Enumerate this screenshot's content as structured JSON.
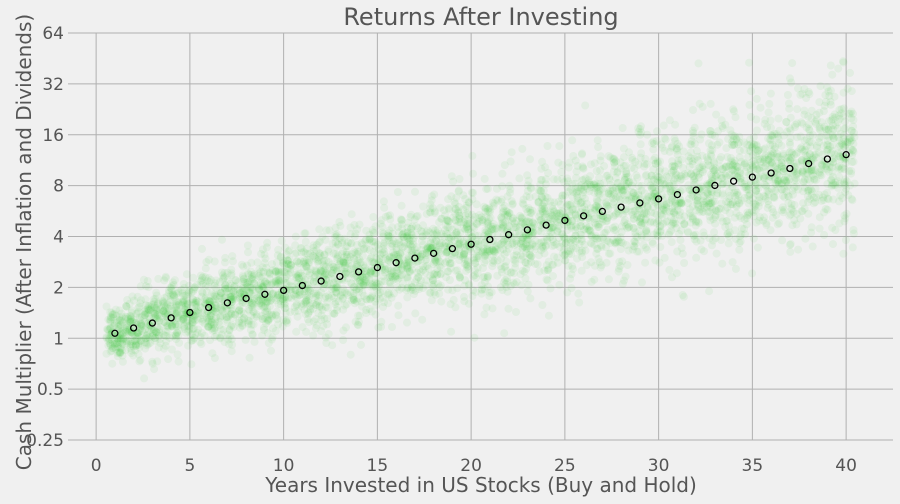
{
  "chart_data": {
    "type": "scatter",
    "title": "Returns After Investing",
    "xlabel": "Years Invested in US Stocks (Buy and Hold)",
    "ylabel": "Cash Multiplier (After Inflation and Dividends)",
    "xlim": [
      -1.5,
      42.5
    ],
    "ylim": [
      0.25,
      64
    ],
    "y_scale": "log2",
    "grid": true,
    "x_ticks": [
      0,
      5,
      10,
      15,
      20,
      25,
      30,
      35,
      40
    ],
    "x_tick_labels": [
      "0",
      "5",
      "10",
      "15",
      "20",
      "25",
      "30",
      "35",
      "40"
    ],
    "y_ticks": [
      0.25,
      0.5,
      1,
      2,
      4,
      8,
      16,
      32,
      64
    ],
    "y_tick_labels": [
      "0.25",
      "0.5",
      "1",
      "2",
      "4",
      "8",
      "16",
      "32",
      "64"
    ],
    "scatter_color": "#2ec92e",
    "scatter_alpha": 0.07,
    "scatter_note": "dense cloud of individual historical outcomes per holding period; spread widens with years",
    "series": [
      {
        "marker": "open-circle",
        "color": "#000000",
        "x": [
          1,
          2,
          3,
          4,
          5,
          6,
          7,
          8,
          9,
          10,
          11,
          12,
          13,
          14,
          15,
          16,
          17,
          18,
          19,
          20,
          21,
          22,
          23,
          24,
          25,
          26,
          27,
          28,
          29,
          30,
          31,
          32,
          33,
          34,
          35,
          36,
          37,
          38,
          39,
          40
        ],
        "y": [
          1.07,
          1.15,
          1.23,
          1.32,
          1.42,
          1.52,
          1.62,
          1.72,
          1.82,
          1.92,
          2.05,
          2.18,
          2.32,
          2.47,
          2.62,
          2.8,
          2.98,
          3.18,
          3.39,
          3.6,
          3.84,
          4.1,
          4.38,
          4.67,
          4.98,
          5.3,
          5.63,
          5.97,
          6.32,
          6.68,
          7.08,
          7.54,
          8.02,
          8.5,
          8.98,
          9.5,
          10.1,
          10.8,
          11.5,
          12.2
        ]
      }
    ],
    "colors": {
      "background": "#f0f0f0",
      "grid": "#b0b0b0",
      "text": "#555555"
    }
  }
}
